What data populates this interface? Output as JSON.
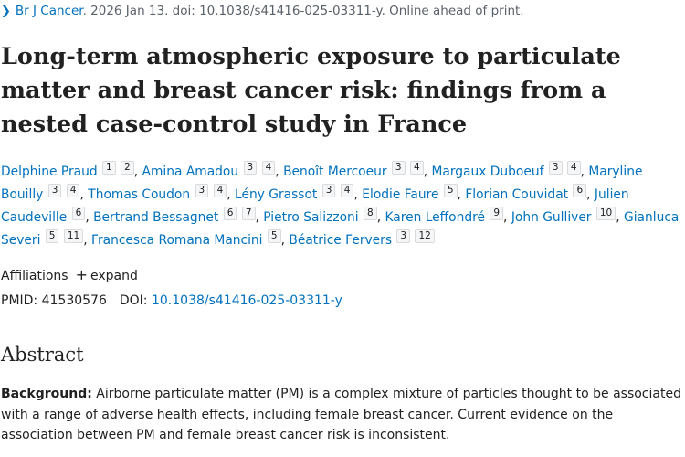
{
  "citation": {
    "journal": "Br J Cancer",
    "rest": ". 2026 Jan 13. doi: 10.1038/s41416-025-03311-y. Online ahead of print."
  },
  "title": "Long-term atmospheric exposure to particulate matter and breast cancer risk: findings from a nested case-control study in France",
  "authors": [
    {
      "name": "Delphine Praud",
      "affs": [
        "1",
        "2"
      ]
    },
    {
      "name": "Amina Amadou",
      "affs": [
        "3",
        "4"
      ]
    },
    {
      "name": "Benoît Mercoeur",
      "affs": [
        "3",
        "4"
      ]
    },
    {
      "name": "Margaux Duboeuf",
      "affs": [
        "3",
        "4"
      ]
    },
    {
      "name": "Maryline Bouilly",
      "affs": [
        "3",
        "4"
      ]
    },
    {
      "name": "Thomas Coudon",
      "affs": [
        "3",
        "4"
      ]
    },
    {
      "name": "Lény Grassot",
      "affs": [
        "3",
        "4"
      ]
    },
    {
      "name": "Elodie Faure",
      "affs": [
        "5"
      ]
    },
    {
      "name": "Florian Couvidat",
      "affs": [
        "6"
      ]
    },
    {
      "name": "Julien Caudeville",
      "affs": [
        "6"
      ]
    },
    {
      "name": "Bertrand Bessagnet",
      "affs": [
        "6",
        "7"
      ]
    },
    {
      "name": "Pietro Salizzoni",
      "affs": [
        "8"
      ]
    },
    {
      "name": "Karen Leffondré",
      "affs": [
        "9"
      ]
    },
    {
      "name": "John Gulliver",
      "affs": [
        "10"
      ]
    },
    {
      "name": "Gianluca Severi",
      "affs": [
        "5",
        "11"
      ]
    },
    {
      "name": "Francesca Romana Mancini",
      "affs": [
        "5"
      ]
    },
    {
      "name": "Béatrice Fervers",
      "affs": [
        "3",
        "12"
      ]
    }
  ],
  "affiliations": {
    "label": "Affiliations",
    "expand_icon": "+",
    "expand_label": "expand"
  },
  "ids": {
    "pmid_label": "PMID:",
    "pmid": "41530576",
    "doi_label": "DOI:",
    "doi": "10.1038/s41416-025-03311-y"
  },
  "abstract": {
    "heading": "Abstract",
    "background_label": "Background:",
    "background_text": " Airborne particulate matter (PM) is a complex mixture of particles thought to be associated with a range of adverse health effects, including female breast cancer. Current evidence on the association between PM and female breast cancer risk is inconsistent."
  }
}
